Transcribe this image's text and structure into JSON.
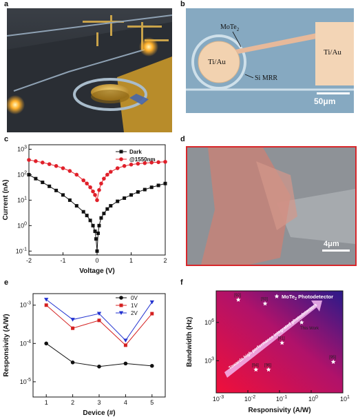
{
  "panels": {
    "a": {
      "letter": "a"
    },
    "b": {
      "letter": "b",
      "labels": {
        "mote2": "MoTe",
        "mote2_sub": "2",
        "tiau_left": "Ti/Au",
        "tiau_right": "Ti/Au",
        "si_mrr": "Si MRR",
        "scale": "50μm"
      }
    },
    "c": {
      "letter": "c"
    },
    "d": {
      "letter": "d",
      "scale": "4μm"
    },
    "e": {
      "letter": "e"
    },
    "f": {
      "letter": "f"
    }
  },
  "chart_data": [
    {
      "id": "c",
      "type": "line",
      "xlabel": "Voltage (V)",
      "ylabel": "Current (nA)",
      "xlim": [
        -2,
        2
      ],
      "ylim": [
        0.07,
        1500
      ],
      "yscale": "log",
      "xticks": [
        "-2",
        "-1",
        "0",
        "1",
        "2"
      ],
      "yticks": [
        {
          "base": "10",
          "exp": "-1",
          "v": 0.1
        },
        {
          "base": "10",
          "exp": "0",
          "v": 1
        },
        {
          "base": "10",
          "exp": "1",
          "v": 10
        },
        {
          "base": "10",
          "exp": "2",
          "v": 100
        },
        {
          "base": "10",
          "exp": "3",
          "v": 1000
        }
      ],
      "legend": "top-right",
      "series": [
        {
          "name": "Dark",
          "color": "#111111",
          "marker": "square",
          "x": [
            -2,
            -1.8,
            -1.6,
            -1.4,
            -1.2,
            -1.0,
            -0.8,
            -0.6,
            -0.4,
            -0.3,
            -0.2,
            -0.12,
            -0.06,
            -0.03,
            0,
            0.03,
            0.06,
            0.12,
            0.2,
            0.3,
            0.4,
            0.6,
            0.8,
            1.0,
            1.2,
            1.4,
            1.6,
            1.8,
            2.0
          ],
          "y": [
            100,
            70,
            50,
            35,
            24,
            16,
            10,
            6,
            3.5,
            2.5,
            1.6,
            1.0,
            0.6,
            0.3,
            0.1,
            0.5,
            1.0,
            2.0,
            3.0,
            4.5,
            6,
            9,
            12,
            16,
            21,
            26,
            32,
            38,
            45
          ]
        },
        {
          "name": "@1550nm",
          "color": "#e0202a",
          "marker": "circle",
          "x": [
            -2,
            -1.8,
            -1.6,
            -1.4,
            -1.2,
            -1.0,
            -0.8,
            -0.6,
            -0.4,
            -0.3,
            -0.2,
            -0.12,
            -0.06,
            0,
            0.06,
            0.12,
            0.2,
            0.3,
            0.4,
            0.6,
            0.8,
            1.0,
            1.2,
            1.4,
            1.6,
            1.8,
            2.0
          ],
          "y": [
            380,
            340,
            300,
            260,
            220,
            180,
            140,
            100,
            60,
            45,
            32,
            22,
            16,
            10,
            25,
            45,
            70,
            100,
            130,
            180,
            220,
            250,
            270,
            285,
            300,
            310,
            320
          ]
        }
      ]
    },
    {
      "id": "e",
      "type": "line",
      "xlabel": "Device (#)",
      "ylabel": "Responsivity (A/W)",
      "xlim": [
        0.5,
        5.5
      ],
      "ylim": [
        4e-06,
        0.002
      ],
      "yscale": "log",
      "xticks": [
        "1",
        "2",
        "3",
        "4",
        "5"
      ],
      "yticks": [
        {
          "base": "10",
          "exp": "-5",
          "v": 1e-05
        },
        {
          "base": "10",
          "exp": "-4",
          "v": 0.0001
        },
        {
          "base": "10",
          "exp": "-3",
          "v": 0.001
        }
      ],
      "legend": "top-right",
      "series": [
        {
          "name": "0V",
          "color": "#111111",
          "marker": "circle",
          "x": [
            1,
            2,
            3,
            4,
            5
          ],
          "y": [
            0.0001,
            3.2e-05,
            2.5e-05,
            3e-05,
            2.6e-05
          ]
        },
        {
          "name": "1V",
          "color": "#d42020",
          "marker": "square",
          "x": [
            1,
            2,
            3,
            4,
            5
          ],
          "y": [
            0.001,
            0.00025,
            0.0004,
            9e-05,
            0.0006
          ]
        },
        {
          "name": "2V",
          "color": "#2232d0",
          "marker": "triangle-down",
          "x": [
            1,
            2,
            3,
            4,
            5
          ],
          "y": [
            0.0014,
            0.00042,
            0.0006,
            0.00012,
            0.0012
          ]
        }
      ]
    },
    {
      "id": "f",
      "type": "scatter",
      "xlabel": "Responsivity (A/W)",
      "ylabel": "Bandwidth (Hz)",
      "xlim": [
        0.001,
        10
      ],
      "ylim": [
        3,
        300000000
      ],
      "yscale": "log",
      "xscale": "log",
      "xticks": [
        {
          "base": "10",
          "exp": "-3",
          "v": 0.001
        },
        {
          "base": "10",
          "exp": "-2",
          "v": 0.01
        },
        {
          "base": "10",
          "exp": "-1",
          "v": 0.1
        },
        {
          "base": "10",
          "exp": "0",
          "v": 1
        },
        {
          "base": "10",
          "exp": "1",
          "v": 10
        }
      ],
      "yticks": [
        {
          "base": "10",
          "exp": "3",
          "v": 1000
        },
        {
          "base": "10",
          "exp": "6",
          "v": 1000000
        }
      ],
      "legend": "top-right",
      "legend_label": "MoTe",
      "legend_sub": "2",
      "legend_tail": " Photodetector",
      "arrow_label": "Towards high performance integrated photodetectors",
      "points": [
        {
          "label": "[92]",
          "x": 0.005,
          "y": 60000000
        },
        {
          "label": "[93]",
          "x": 0.035,
          "y": 30000000
        },
        {
          "label": "This Work",
          "x": 0.5,
          "y": 1000000
        },
        {
          "label": "[91]",
          "x": 0.12,
          "y": 25000
        },
        {
          "label": "[94]",
          "x": 0.018,
          "y": 200
        },
        {
          "label": "[96]",
          "x": 0.045,
          "y": 200
        },
        {
          "label": "[95]",
          "x": 5,
          "y": 800
        }
      ]
    }
  ]
}
